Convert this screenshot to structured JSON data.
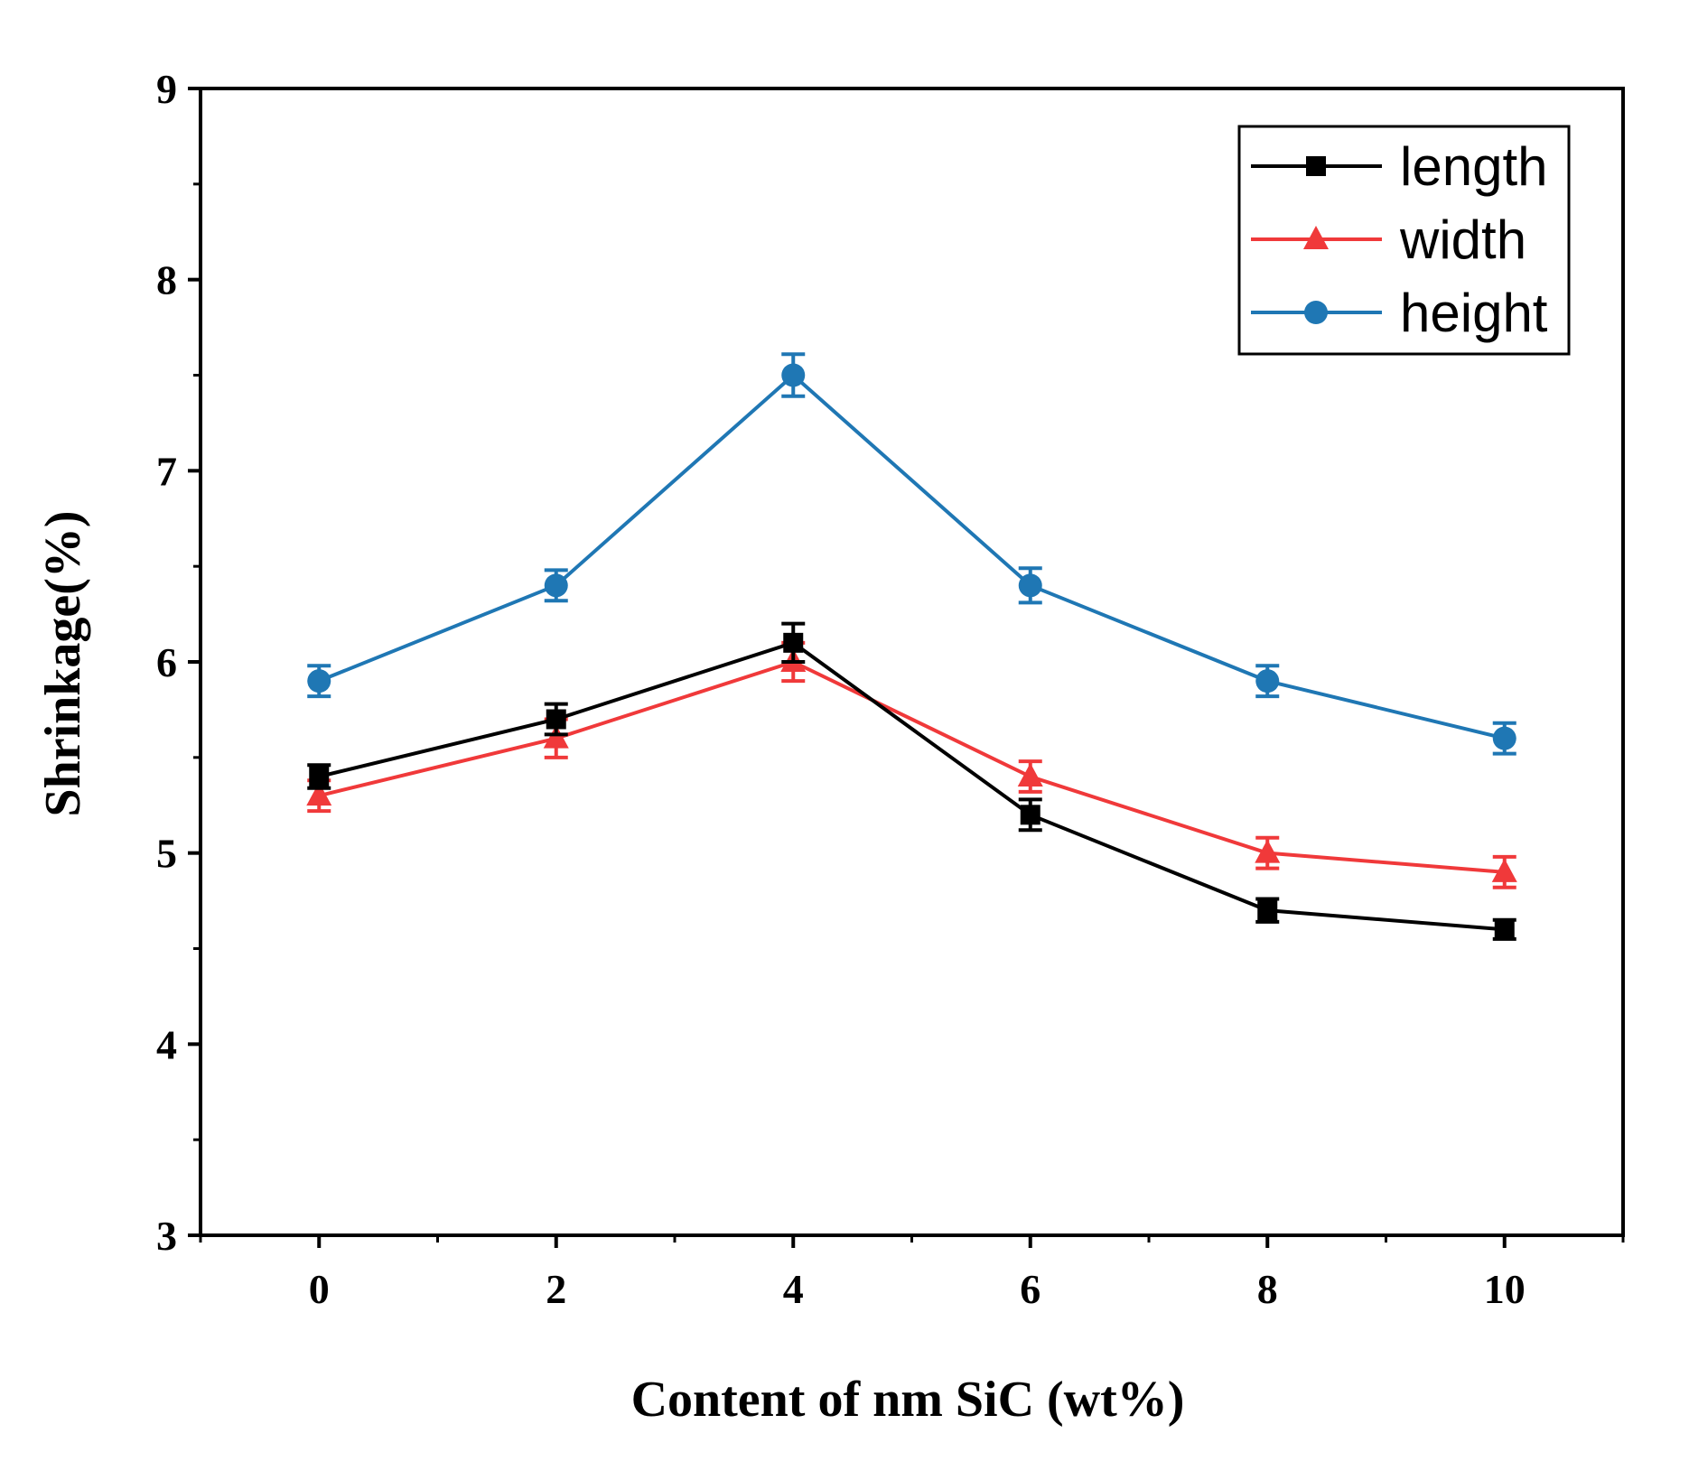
{
  "chart_data": {
    "type": "line",
    "title": "",
    "xlabel": "Content of nm SiC (wt%)",
    "ylabel": "Shrinkage(%)",
    "xlim": [
      -1,
      11
    ],
    "ylim": [
      3,
      9
    ],
    "xticks": [
      0,
      2,
      4,
      6,
      8,
      10
    ],
    "yticks": [
      3,
      4,
      5,
      6,
      7,
      8,
      9
    ],
    "x": [
      0,
      2,
      4,
      6,
      8,
      10
    ],
    "grid": false,
    "legend_position": "top-right",
    "series": [
      {
        "name": "length",
        "color": "#000000",
        "marker": "square",
        "values": [
          5.4,
          5.7,
          6.1,
          5.2,
          4.7,
          4.6
        ],
        "errors": [
          0.06,
          0.08,
          0.1,
          0.08,
          0.06,
          0.05
        ]
      },
      {
        "name": "width",
        "color": "#f0393a",
        "marker": "triangle",
        "values": [
          5.3,
          5.6,
          6.0,
          5.4,
          5.0,
          4.9
        ],
        "errors": [
          0.08,
          0.1,
          0.1,
          0.08,
          0.08,
          0.08
        ]
      },
      {
        "name": "height",
        "color": "#1f77b4",
        "marker": "circle",
        "values": [
          5.9,
          6.4,
          7.5,
          6.4,
          5.9,
          5.6
        ],
        "errors": [
          0.08,
          0.08,
          0.11,
          0.09,
          0.08,
          0.08
        ]
      }
    ]
  }
}
